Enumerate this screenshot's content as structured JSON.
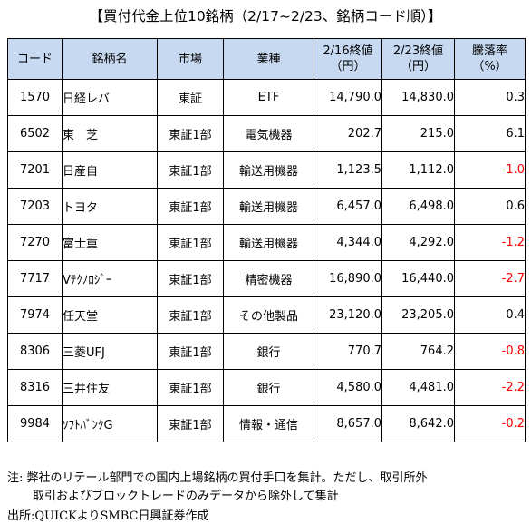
{
  "title": "【買付代金上位10銘柄（2/17~2/23、銘柄コード順）】",
  "table": {
    "headers": [
      "コード",
      "銘柄名",
      "市場",
      "業種",
      "2/16終値\n（円）",
      "2/23終値\n（円）",
      "騰落率\n（%）"
    ],
    "rows": [
      {
        "code": "1570",
        "name": "日経レバ",
        "market": "東証",
        "industry": "ETF",
        "close_0216": "14,790.0",
        "close_0223": "14,830.0",
        "change": "0.3",
        "negative": false
      },
      {
        "code": "6502",
        "name": "東　芝",
        "market": "東証1部",
        "industry": "電気機器",
        "close_0216": "202.7",
        "close_0223": "215.0",
        "change": "6.1",
        "negative": false
      },
      {
        "code": "7201",
        "name": "日産自",
        "market": "東証1部",
        "industry": "輸送用機器",
        "close_0216": "1,123.5",
        "close_0223": "1,112.0",
        "change": "-1.0",
        "negative": true
      },
      {
        "code": "7203",
        "name": "トヨタ",
        "market": "東証1部",
        "industry": "輸送用機器",
        "close_0216": "6,457.0",
        "close_0223": "6,498.0",
        "change": "0.6",
        "negative": false
      },
      {
        "code": "7270",
        "name": "富士重",
        "market": "東証1部",
        "industry": "輸送用機器",
        "close_0216": "4,344.0",
        "close_0223": "4,292.0",
        "change": "-1.2",
        "negative": true
      },
      {
        "code": "7717",
        "name": "Vﾃｸﾉﾛｼﾞｰ",
        "market": "東証1部",
        "industry": "精密機器",
        "close_0216": "16,890.0",
        "close_0223": "16,440.0",
        "change": "-2.7",
        "negative": true
      },
      {
        "code": "7974",
        "name": "任天堂",
        "market": "東証1部",
        "industry": "その他製品",
        "close_0216": "23,120.0",
        "close_0223": "23,205.0",
        "change": "0.4",
        "negative": false
      },
      {
        "code": "8306",
        "name": "三菱UFJ",
        "market": "東証1部",
        "industry": "銀行",
        "close_0216": "770.7",
        "close_0223": "764.2",
        "change": "-0.8",
        "negative": true
      },
      {
        "code": "8316",
        "name": "三井住友",
        "market": "東証1部",
        "industry": "銀行",
        "close_0216": "4,580.0",
        "close_0223": "4,481.0",
        "change": "-2.2",
        "negative": true
      },
      {
        "code": "9984",
        "name": "ｿﾌﾄﾊﾞﾝｸG",
        "market": "東証1部",
        "industry": "情報・通信",
        "close_0216": "8,657.0",
        "close_0223": "8,642.0",
        "change": "-0.2",
        "negative": true
      }
    ]
  },
  "notes": {
    "line1": "注: 弊社のリテール部門での国内上場銘柄の買付手口を集計。ただし、取引所外",
    "line2": "取引およびブロックトレードのみデータから除外して集計",
    "source": "出所:QUICKよりSMBC日興証券作成"
  },
  "colors": {
    "header_bg": "#c6d9f1",
    "negative": "#ff0000"
  }
}
